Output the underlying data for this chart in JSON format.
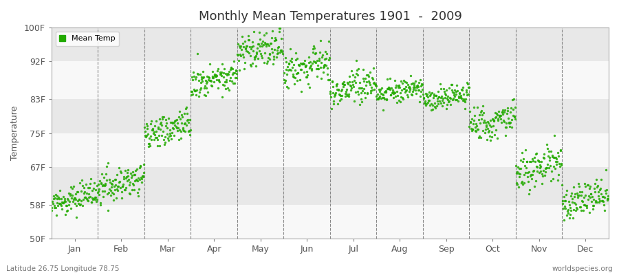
{
  "title": "Monthly Mean Temperatures 1901  -  2009",
  "ylabel": "Temperature",
  "xlabel_bottom_left": "Latitude 26.75 Longitude 78.75",
  "xlabel_bottom_right": "worldspecies.org",
  "dot_color": "#22AA00",
  "bg_color": "#FFFFFF",
  "plot_bg_color": "#F0F0F0",
  "band_color_light": "#F8F8F8",
  "band_color_dark": "#E8E8E8",
  "legend_label": "Mean Temp",
  "ytick_labels": [
    "50F",
    "58F",
    "67F",
    "75F",
    "83F",
    "92F",
    "100F"
  ],
  "ytick_values": [
    50,
    58,
    67,
    75,
    83,
    92,
    100
  ],
  "ylim": [
    50,
    100
  ],
  "months": [
    "Jan",
    "Feb",
    "Mar",
    "Apr",
    "May",
    "Jun",
    "Jul",
    "Aug",
    "Sep",
    "Oct",
    "Nov",
    "Dec"
  ],
  "month_centers": [
    0.5,
    1.5,
    2.5,
    3.5,
    4.5,
    5.5,
    6.5,
    7.5,
    8.5,
    9.5,
    10.5,
    11.5
  ],
  "start_year": 1901,
  "end_year": 2009,
  "month_means_F": [
    59.5,
    63.0,
    76.0,
    88.0,
    95.0,
    91.0,
    86.0,
    85.0,
    83.5,
    78.0,
    67.0,
    59.5
  ],
  "month_trend_per_year": [
    0.025,
    0.028,
    0.03,
    0.028,
    0.025,
    0.02,
    0.018,
    0.018,
    0.02,
    0.025,
    0.03,
    0.028
  ],
  "month_noise_std": [
    1.5,
    2.0,
    2.0,
    1.8,
    2.5,
    2.5,
    1.8,
    1.5,
    1.5,
    2.0,
    2.5,
    2.0
  ]
}
